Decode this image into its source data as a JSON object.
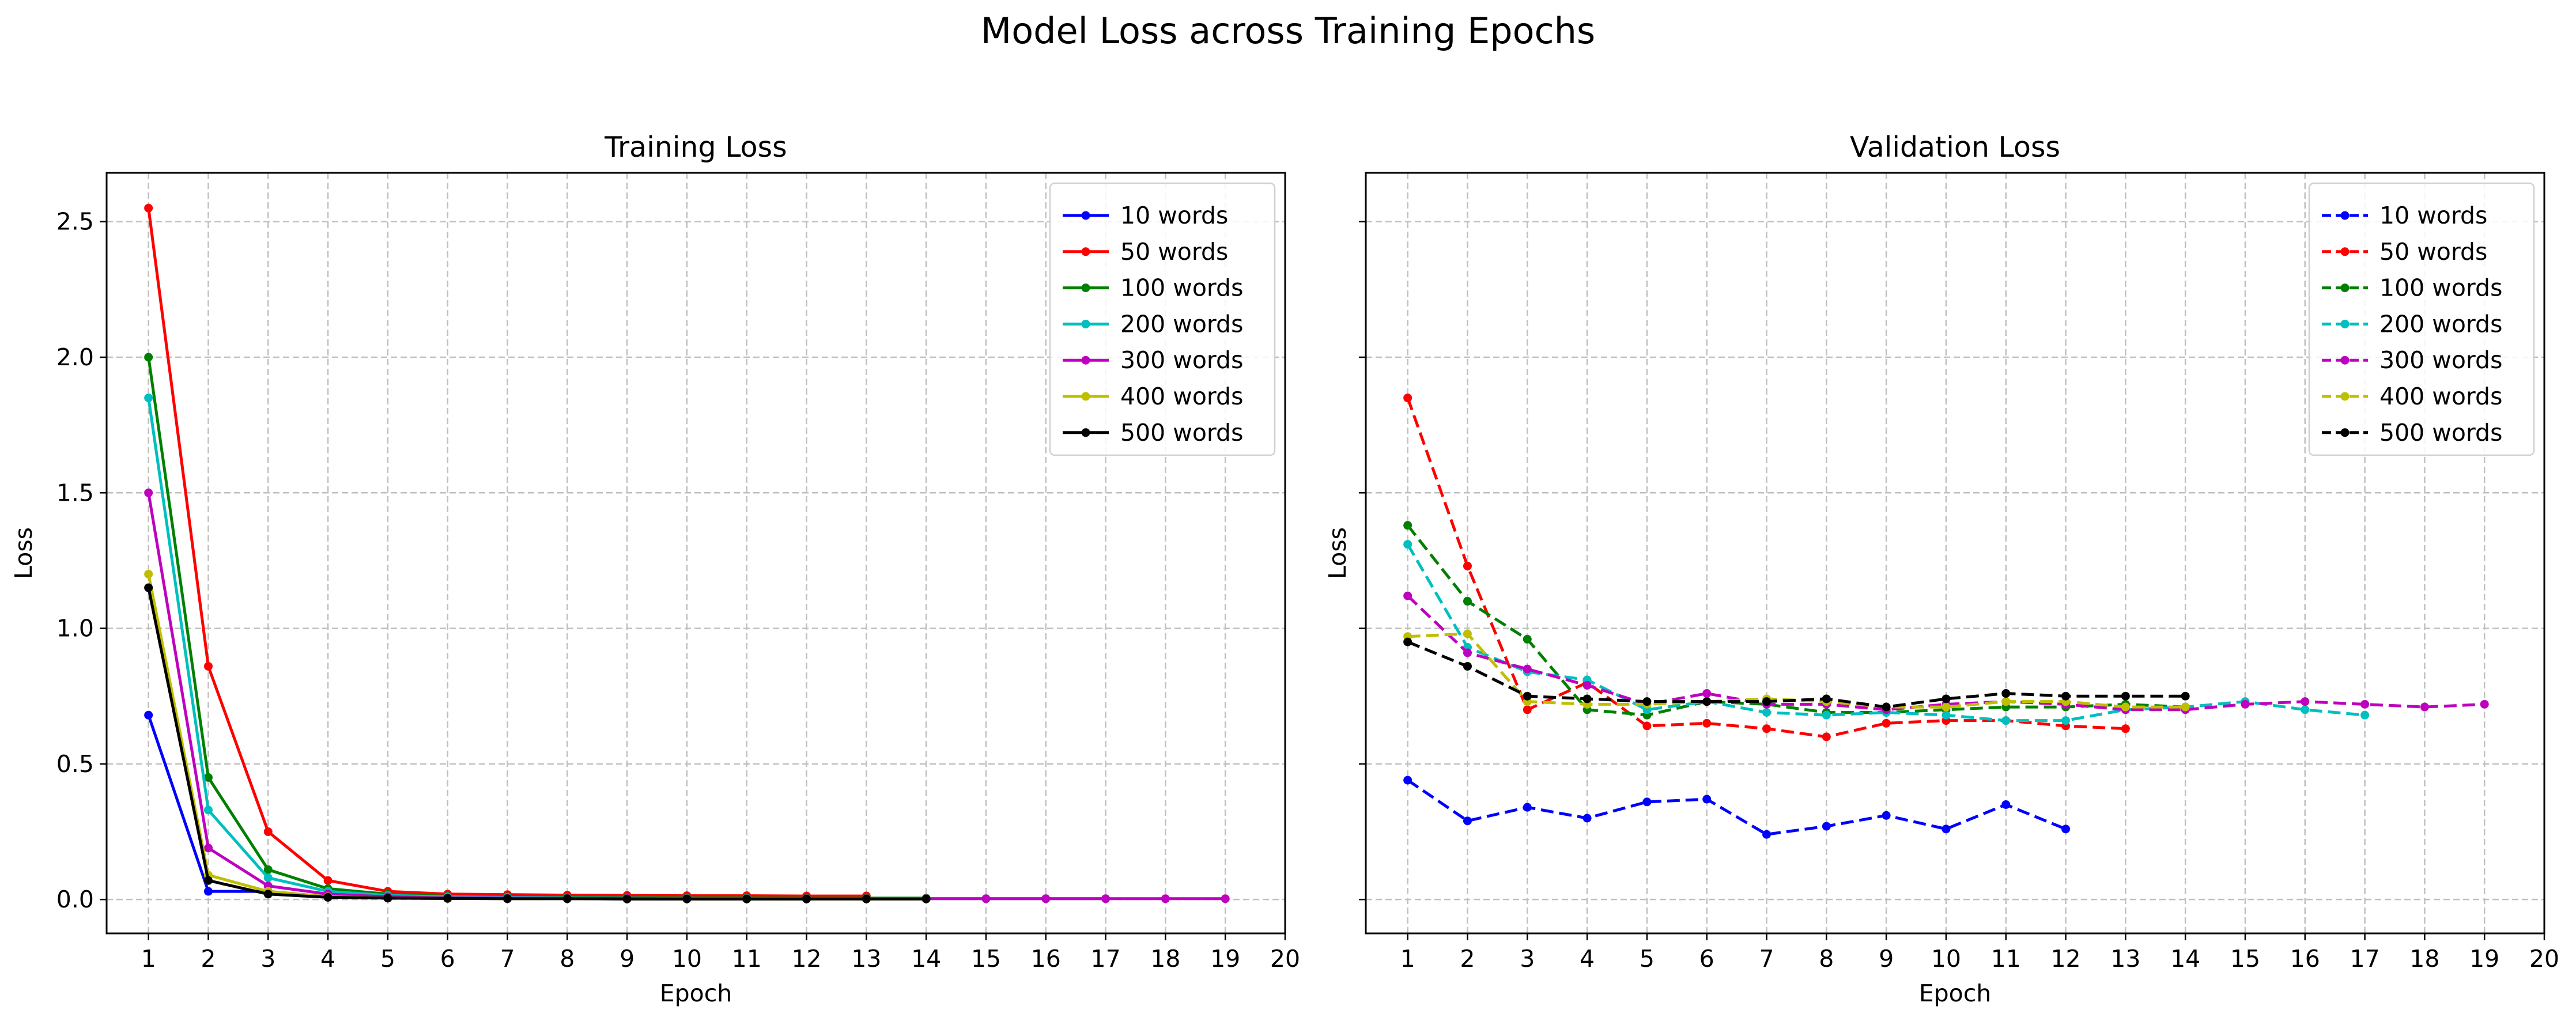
{
  "figure": {
    "title": "Model Loss across Training Epochs"
  },
  "chart_data": [
    {
      "type": "line",
      "title": "Training Loss",
      "xlabel": "Epoch",
      "ylabel": "Loss",
      "xlim": [
        0.3,
        20
      ],
      "ylim": [
        -0.125,
        2.68
      ],
      "x_ticks": [
        1,
        2,
        3,
        4,
        5,
        6,
        7,
        8,
        9,
        10,
        11,
        12,
        13,
        14,
        15,
        16,
        17,
        18,
        19,
        20
      ],
      "y_ticks": [
        0.0,
        0.5,
        1.0,
        1.5,
        2.0,
        2.5
      ],
      "y_tick_labels": [
        "0.0",
        "0.5",
        "1.0",
        "1.5",
        "2.0",
        "2.5"
      ],
      "grid": true,
      "line_style": "solid",
      "legend": "top-right",
      "series": [
        {
          "name": "10 words",
          "color": "#0000ff",
          "x": [
            1,
            2,
            3,
            4,
            5,
            6,
            7,
            8,
            9,
            10,
            11,
            12
          ],
          "values": [
            0.68,
            0.03,
            0.03,
            0.01,
            0.005,
            0.004,
            0.003,
            0.003,
            0.002,
            0.002,
            0.002,
            0.002
          ]
        },
        {
          "name": "50 words",
          "color": "#ff0000",
          "x": [
            1,
            2,
            3,
            4,
            5,
            6,
            7,
            8,
            9,
            10,
            11,
            12,
            13
          ],
          "values": [
            2.55,
            0.86,
            0.25,
            0.07,
            0.03,
            0.02,
            0.018,
            0.016,
            0.015,
            0.014,
            0.014,
            0.013,
            0.013
          ]
        },
        {
          "name": "100 words",
          "color": "#008000",
          "x": [
            1,
            2,
            3,
            4,
            5,
            6,
            7,
            8,
            9,
            10,
            11,
            12,
            13,
            14
          ],
          "values": [
            2.0,
            0.45,
            0.11,
            0.04,
            0.02,
            0.012,
            0.01,
            0.008,
            0.007,
            0.006,
            0.006,
            0.005,
            0.005,
            0.005
          ]
        },
        {
          "name": "200 words",
          "color": "#00bfbf",
          "x": [
            1,
            2,
            3,
            4,
            5,
            6,
            7,
            8,
            9,
            10,
            11,
            12,
            13,
            14,
            15,
            16,
            17
          ],
          "values": [
            1.85,
            0.33,
            0.08,
            0.03,
            0.015,
            0.01,
            0.008,
            0.006,
            0.005,
            0.004,
            0.004,
            0.003,
            0.003,
            0.003,
            0.003,
            0.003,
            0.003
          ]
        },
        {
          "name": "300 words",
          "color": "#bf00bf",
          "x": [
            1,
            2,
            3,
            4,
            5,
            6,
            7,
            8,
            9,
            10,
            11,
            12,
            13,
            14,
            15,
            16,
            17,
            18,
            19
          ],
          "values": [
            1.5,
            0.19,
            0.05,
            0.02,
            0.01,
            0.006,
            0.005,
            0.004,
            0.004,
            0.003,
            0.003,
            0.003,
            0.003,
            0.003,
            0.003,
            0.003,
            0.003,
            0.003,
            0.003
          ]
        },
        {
          "name": "400 words",
          "color": "#bfbf00",
          "x": [
            1,
            2,
            3,
            4,
            5,
            6,
            7,
            8,
            9,
            10,
            11,
            12,
            13,
            14
          ],
          "values": [
            1.2,
            0.09,
            0.03,
            0.01,
            0.005,
            0.004,
            0.003,
            0.003,
            0.002,
            0.002,
            0.002,
            0.002,
            0.002,
            0.002
          ]
        },
        {
          "name": "500 words",
          "color": "#000000",
          "x": [
            1,
            2,
            3,
            4,
            5,
            6,
            7,
            8,
            9,
            10,
            11,
            12,
            13,
            14
          ],
          "values": [
            1.15,
            0.07,
            0.02,
            0.008,
            0.005,
            0.004,
            0.003,
            0.003,
            0.002,
            0.002,
            0.002,
            0.002,
            0.002,
            0.002
          ]
        }
      ]
    },
    {
      "type": "line",
      "title": "Validation Loss",
      "xlabel": "Epoch",
      "ylabel": "Loss",
      "xlim": [
        0.3,
        20
      ],
      "ylim": [
        -0.125,
        2.68
      ],
      "x_ticks": [
        1,
        2,
        3,
        4,
        5,
        6,
        7,
        8,
        9,
        10,
        11,
        12,
        13,
        14,
        15,
        16,
        17,
        18,
        19,
        20
      ],
      "y_ticks": [
        0.0,
        0.5,
        1.0,
        1.5,
        2.0,
        2.5
      ],
      "grid": true,
      "line_style": "dashed",
      "legend": "top-right",
      "series": [
        {
          "name": "10 words",
          "color": "#0000ff",
          "x": [
            1,
            2,
            3,
            4,
            5,
            6,
            7,
            8,
            9,
            10,
            11,
            12
          ],
          "values": [
            0.44,
            0.29,
            0.34,
            0.3,
            0.36,
            0.37,
            0.24,
            0.27,
            0.31,
            0.26,
            0.35,
            0.26
          ]
        },
        {
          "name": "50 words",
          "color": "#ff0000",
          "x": [
            1,
            2,
            3,
            4,
            5,
            6,
            7,
            8,
            9,
            10,
            11,
            12,
            13
          ],
          "values": [
            1.85,
            1.23,
            0.7,
            0.8,
            0.64,
            0.65,
            0.63,
            0.6,
            0.65,
            0.66,
            0.66,
            0.64,
            0.63
          ]
        },
        {
          "name": "100 words",
          "color": "#008000",
          "x": [
            1,
            2,
            3,
            4,
            5,
            6,
            7,
            8,
            9,
            10,
            11,
            12,
            13,
            14
          ],
          "values": [
            1.38,
            1.1,
            0.96,
            0.7,
            0.68,
            0.73,
            0.72,
            0.69,
            0.69,
            0.7,
            0.71,
            0.71,
            0.72,
            0.71
          ]
        },
        {
          "name": "200 words",
          "color": "#00bfbf",
          "x": [
            1,
            2,
            3,
            4,
            5,
            6,
            7,
            8,
            9,
            10,
            11,
            12,
            13,
            14,
            15,
            16,
            17
          ],
          "values": [
            1.31,
            0.93,
            0.84,
            0.81,
            0.7,
            0.73,
            0.69,
            0.68,
            0.69,
            0.68,
            0.66,
            0.66,
            0.7,
            0.71,
            0.73,
            0.7,
            0.68
          ]
        },
        {
          "name": "300 words",
          "color": "#bf00bf",
          "x": [
            1,
            2,
            3,
            4,
            5,
            6,
            7,
            8,
            9,
            10,
            11,
            12,
            13,
            14,
            15,
            16,
            17,
            18,
            19
          ],
          "values": [
            1.12,
            0.91,
            0.85,
            0.79,
            0.72,
            0.76,
            0.72,
            0.72,
            0.7,
            0.72,
            0.73,
            0.72,
            0.7,
            0.7,
            0.72,
            0.73,
            0.72,
            0.71,
            0.72
          ]
        },
        {
          "name": "400 words",
          "color": "#bfbf00",
          "x": [
            1,
            2,
            3,
            4,
            5,
            6,
            7,
            8,
            9,
            10,
            11,
            12,
            13,
            14
          ],
          "values": [
            0.97,
            0.98,
            0.73,
            0.72,
            0.72,
            0.73,
            0.74,
            0.73,
            0.71,
            0.71,
            0.73,
            0.73,
            0.71,
            0.71
          ]
        },
        {
          "name": "500 words",
          "color": "#000000",
          "x": [
            1,
            2,
            3,
            4,
            5,
            6,
            7,
            8,
            9,
            10,
            11,
            12,
            13,
            14
          ],
          "values": [
            0.95,
            0.86,
            0.75,
            0.74,
            0.73,
            0.73,
            0.73,
            0.74,
            0.71,
            0.74,
            0.76,
            0.75,
            0.75,
            0.75
          ]
        }
      ]
    }
  ]
}
